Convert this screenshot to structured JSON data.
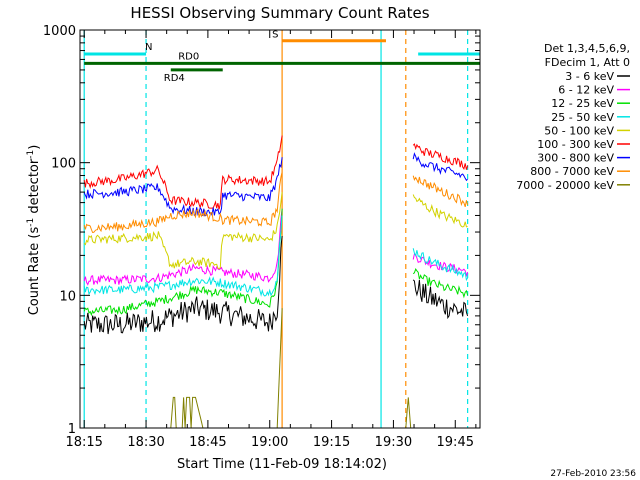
{
  "chart_data": {
    "type": "line",
    "title": "HESSI Observing Summary Count Rates",
    "xlabel": "Start Time (11-Feb-09 18:14:02)",
    "ylabel": "Count Rate (s⁻¹ detector⁻¹)",
    "ylabel_parts": {
      "main": "Count Rate (s",
      "sup1": "-1",
      "mid": " detector",
      "sup2": "-1",
      "end": ")"
    },
    "xlim": [
      18.233,
      19.85
    ],
    "ylim": [
      1,
      1000
    ],
    "yscale": "log",
    "x_ticks": [
      "18:15",
      "18:30",
      "18:45",
      "19:00",
      "19:15",
      "19:30",
      "19:45"
    ],
    "x_tick_values": [
      18.25,
      18.5,
      18.75,
      19.0,
      19.25,
      19.5,
      19.75
    ],
    "y_ticks": [
      "1",
      "10",
      "100",
      "1000"
    ],
    "y_tick_values": [
      1,
      10,
      100,
      1000
    ],
    "legend_placement": "right",
    "legend_header": [
      "Det 1,3,4,5,6,9,",
      "FDecim 1, Att 0"
    ],
    "timestamp": "27-Feb-2010 23:56",
    "flags": [
      {
        "label": "N",
        "color": "#00e5e5",
        "level": 660,
        "segments": [
          [
            18.25,
            18.5
          ],
          [
            19.6,
            19.85
          ]
        ]
      },
      {
        "label": "S",
        "color": "#ff8c00",
        "level": 830,
        "segments": [
          [
            19.05,
            19.47
          ]
        ]
      },
      {
        "label": "RD0",
        "color": "#006400",
        "level": 560,
        "segments": [
          [
            18.25,
            19.85
          ]
        ]
      },
      {
        "label": "RD4",
        "color": "#006400",
        "level": 500,
        "segments": [
          [
            18.6,
            18.81
          ]
        ]
      }
    ],
    "vlines": [
      {
        "x": 18.25,
        "color": "#00e5e5",
        "style": "solid"
      },
      {
        "x": 18.5,
        "color": "#00e5e5",
        "style": "dashed"
      },
      {
        "x": 19.05,
        "color": "#ff8c00",
        "style": "solid"
      },
      {
        "x": 19.45,
        "color": "#00e5e5",
        "style": "solid"
      },
      {
        "x": 19.55,
        "color": "#ff8c00",
        "style": "dashed"
      },
      {
        "x": 19.8,
        "color": "#00e5e5",
        "style": "dashed"
      }
    ],
    "series": [
      {
        "name": "3 - 6 keV",
        "color": "#000000",
        "segments": [
          {
            "x": [
              18.25,
              18.4,
              18.55,
              18.7,
              18.8,
              18.95,
              19.0,
              19.03,
              19.05
            ],
            "y": [
              6,
              6,
              6.5,
              8,
              7.5,
              6.5,
              6.2,
              8,
              28
            ]
          },
          {
            "x": [
              19.58,
              19.63,
              19.7,
              19.78,
              19.8
            ],
            "y": [
              12,
              10,
              8.5,
              7.5,
              7
            ]
          }
        ]
      },
      {
        "name": "6 - 12 keV",
        "color": "#ff00ff",
        "segments": [
          {
            "x": [
              18.25,
              18.4,
              18.55,
              18.7,
              18.8,
              18.95,
              19.0,
              19.03,
              19.05
            ],
            "y": [
              13,
              13,
              13.5,
              16,
              15,
              14,
              13.5,
              17,
              45
            ]
          },
          {
            "x": [
              19.58,
              19.63,
              19.7,
              19.78,
              19.8
            ],
            "y": [
              20,
              18,
              16.5,
              15.5,
              15
            ]
          }
        ]
      },
      {
        "name": "12 - 25 keV",
        "color": "#00e000",
        "segments": [
          {
            "x": [
              18.25,
              18.4,
              18.55,
              18.7,
              18.8,
              18.95,
              19.0,
              19.03,
              19.05
            ],
            "y": [
              7.5,
              7.8,
              9,
              11,
              10.5,
              9,
              8.5,
              12,
              45
            ]
          },
          {
            "x": [
              19.58,
              19.63,
              19.7,
              19.78,
              19.8
            ],
            "y": [
              15,
              13,
              11.5,
              10.5,
              10
            ]
          }
        ]
      },
      {
        "name": "25 - 50 keV",
        "color": "#00e5e5",
        "segments": [
          {
            "x": [
              18.25,
              18.4,
              18.55,
              18.7,
              18.8,
              18.95,
              19.0,
              19.03,
              19.05
            ],
            "y": [
              11,
              11,
              11.5,
              13,
              12.5,
              11,
              10.5,
              13,
              40
            ]
          },
          {
            "x": [
              19.58,
              19.63,
              19.7,
              19.78,
              19.8
            ],
            "y": [
              22,
              19,
              16.5,
              14.5,
              13.5
            ]
          }
        ]
      },
      {
        "name": "50 - 100 keV",
        "color": "#d2d200",
        "segments": [
          {
            "x": [
              18.25,
              18.4,
              18.55,
              18.6,
              18.7,
              18.8,
              18.81,
              18.95,
              19.0,
              19.03,
              19.05
            ],
            "y": [
              26,
              27,
              28,
              17,
              18,
              17,
              28,
              27,
              26,
              32,
              60
            ]
          },
          {
            "x": [
              19.58,
              19.63,
              19.7,
              19.78,
              19.8
            ],
            "y": [
              55,
              47,
              40,
              35,
              33
            ]
          }
        ]
      },
      {
        "name": "100 - 300 keV",
        "color": "#ff0000",
        "segments": [
          {
            "x": [
              18.25,
              18.4,
              18.55,
              18.6,
              18.7,
              18.8,
              18.81,
              18.95,
              19.0,
              19.03,
              19.05
            ],
            "y": [
              70,
              75,
              88,
              52,
              50,
              48,
              75,
              73,
              72,
              100,
              160
            ]
          },
          {
            "x": [
              19.58,
              19.63,
              19.7,
              19.78,
              19.8
            ],
            "y": [
              135,
              120,
              110,
              98,
              95
            ]
          }
        ]
      },
      {
        "name": "300 - 800 keV",
        "color": "#0000ff",
        "segments": [
          {
            "x": [
              18.25,
              18.4,
              18.55,
              18.6,
              18.7,
              18.8,
              18.81,
              18.95,
              19.0,
              19.03,
              19.05
            ],
            "y": [
              58,
              60,
              65,
              45,
              43,
              42,
              57,
              55,
              54,
              75,
              110
            ]
          },
          {
            "x": [
              19.58,
              19.63,
              19.7,
              19.78,
              19.8
            ],
            "y": [
              110,
              98,
              88,
              80,
              75
            ]
          }
        ]
      },
      {
        "name": "800 - 7000 keV",
        "color": "#ff8c00",
        "segments": [
          {
            "x": [
              18.25,
              18.4,
              18.55,
              18.6,
              18.7,
              18.8,
              18.81,
              18.95,
              19.0,
              19.03,
              19.05
            ],
            "y": [
              32,
              33,
              36,
              40,
              42,
              38,
              37,
              36,
              35,
              45,
              85
            ]
          },
          {
            "x": [
              19.58,
              19.63,
              19.7,
              19.78,
              19.8
            ],
            "y": [
              80,
              70,
              60,
              52,
              48
            ]
          }
        ]
      },
      {
        "name": "7000 - 20000 keV",
        "color": "#808000",
        "segments": [
          {
            "x": [
              18.6,
              18.61,
              18.64,
              18.67,
              18.7,
              18.73
            ],
            "y": [
              1,
              1.7,
              1.7,
              1.7,
              1.7,
              1
            ]
          },
          {
            "x": [
              19.03,
              19.05
            ],
            "y": [
              1,
              8
            ]
          },
          {
            "x": [
              19.55,
              19.56,
              19.57
            ],
            "y": [
              1,
              1.7,
              1
            ]
          }
        ]
      }
    ]
  }
}
